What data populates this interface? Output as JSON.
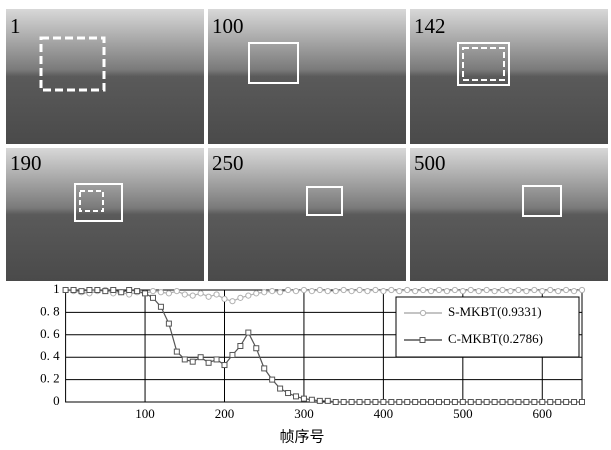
{
  "frames": [
    {
      "label": "1"
    },
    {
      "label": "100"
    },
    {
      "label": "142"
    },
    {
      "label": "190"
    },
    {
      "label": "250"
    },
    {
      "label": "500"
    }
  ],
  "chart_data": {
    "type": "line",
    "xlabel": "帧序号",
    "x": [
      0,
      10,
      20,
      30,
      40,
      50,
      60,
      70,
      80,
      90,
      100,
      110,
      120,
      130,
      140,
      150,
      160,
      170,
      180,
      190,
      200,
      210,
      220,
      230,
      240,
      250,
      260,
      270,
      280,
      290,
      300,
      310,
      320,
      330,
      340,
      350,
      360,
      370,
      380,
      390,
      400,
      410,
      420,
      430,
      440,
      450,
      460,
      470,
      480,
      490,
      500,
      510,
      520,
      530,
      540,
      550,
      560,
      570,
      580,
      590,
      600,
      610,
      620,
      630,
      640,
      650
    ],
    "xlim": [
      0,
      650
    ],
    "xticks": [
      100,
      200,
      300,
      400,
      500,
      600
    ],
    "ylim": [
      0,
      1
    ],
    "yticks": [
      0,
      {
        "value": 0.2,
        "label": "0. 2"
      },
      {
        "value": 0.4,
        "label": "0. 4"
      },
      {
        "value": 0.6,
        "label": "0. 6"
      },
      {
        "value": 0.8,
        "label": "0. 8"
      },
      1
    ],
    "grid": true,
    "legend": "right",
    "series": [
      {
        "name": "S-MKBT(0.9331)",
        "color": "#b0b0b0",
        "marker": "circle",
        "values": [
          1,
          0.99,
          0.98,
          0.97,
          0.99,
          1,
          0.97,
          0.98,
          0.96,
          0.98,
          0.97,
          0.99,
          0.98,
          0.97,
          0.99,
          0.96,
          0.95,
          0.97,
          0.94,
          0.96,
          0.92,
          0.9,
          0.93,
          0.95,
          0.97,
          0.98,
          0.99,
          0.98,
          1,
          0.99,
          1,
          0.99,
          1,
          0.99,
          0.99,
          1,
          0.99,
          1,
          0.99,
          1,
          0.99,
          1,
          0.99,
          1,
          0.99,
          1,
          0.99,
          1,
          0.99,
          1,
          0.99,
          1,
          0.99,
          1,
          0.99,
          1,
          0.99,
          1,
          0.99,
          1,
          0.99,
          1,
          0.99,
          1,
          0.99,
          1
        ]
      },
      {
        "name": "C-MKBT(0.2786)",
        "color": "#555555",
        "marker": "square",
        "values": [
          1,
          1,
          0.99,
          1,
          1,
          0.99,
          1,
          0.98,
          1,
          0.99,
          0.97,
          0.93,
          0.85,
          0.7,
          0.45,
          0.38,
          0.36,
          0.4,
          0.35,
          0.38,
          0.33,
          0.42,
          0.5,
          0.62,
          0.48,
          0.3,
          0.2,
          0.12,
          0.08,
          0.05,
          0.03,
          0.02,
          0.01,
          0.01,
          0,
          0,
          0,
          0,
          0,
          0,
          0,
          0,
          0,
          0,
          0,
          0,
          0,
          0,
          0,
          0,
          0,
          0,
          0,
          0,
          0,
          0,
          0,
          0,
          0,
          0,
          0,
          0,
          0,
          0,
          0,
          0
        ]
      }
    ]
  }
}
